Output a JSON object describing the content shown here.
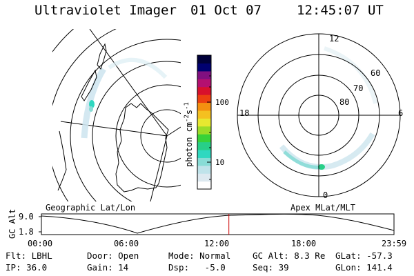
{
  "header": {
    "title": "Ultraviolet Imager",
    "date": "01 Oct 07",
    "time": "12:45:07 UT"
  },
  "colorbar": {
    "label": "photon cm",
    "sup1": "-2",
    "mid": "s",
    "sup2": "-1",
    "ticks": [
      "100",
      "10"
    ],
    "colors": [
      "#ffffff",
      "#dde9f0",
      "#bfe3ea",
      "#88dcd6",
      "#30d8c0",
      "#28cf88",
      "#38d238",
      "#9cdc28",
      "#e8e830",
      "#f4c020",
      "#f49010",
      "#ec4010",
      "#d8102c",
      "#b41070",
      "#801080",
      "#000070",
      "#00003a"
    ]
  },
  "left_map": {
    "label": "Geographic Lat/Lon"
  },
  "right_map": {
    "label": "Apex MLat/MLT",
    "mlt": [
      "12",
      "18",
      "6",
      "0"
    ],
    "mlat": [
      "60",
      "70",
      "80"
    ]
  },
  "timeline": {
    "axis_label": "GC Alt",
    "yticks": [
      "9.0",
      "1.8"
    ],
    "xticks": [
      "00:00",
      "06:00",
      "12:00",
      "18:00",
      "23:59"
    ],
    "marker_time": "12:45",
    "marker_color": "#cc0000"
  },
  "info": {
    "filter": "Flt: LBHL",
    "ip": "IP: 36.0",
    "door": "Door: Open",
    "gain": "Gain: 14",
    "mode": "Mode: Normal",
    "dsp": "Dsp:   -5.0",
    "gc_alt": "GC Alt: 8.3 Re",
    "seq": "Seq: 39",
    "glat": "GLat: -57.3",
    "glon": "GLon: 141.4"
  }
}
